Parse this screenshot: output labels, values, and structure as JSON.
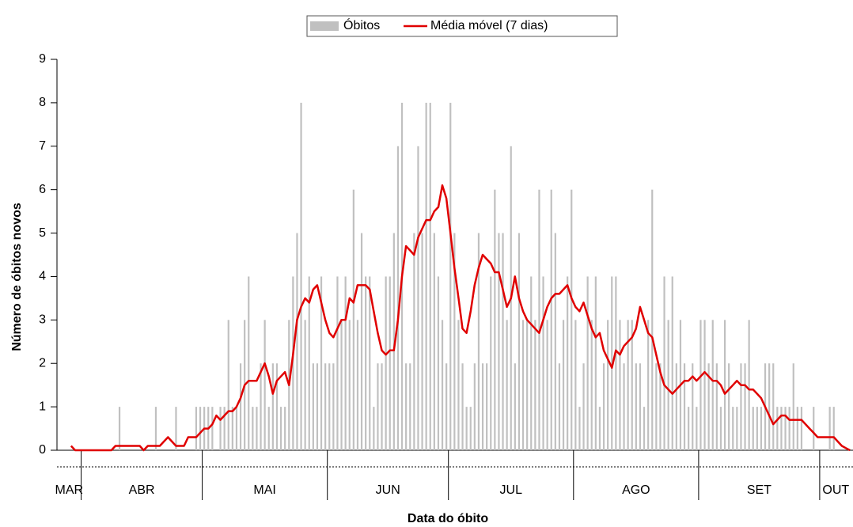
{
  "chart_data": {
    "type": "bar_line",
    "y_label": "Número de óbitos novos",
    "x_label": "Data do óbito",
    "months": [
      "MAR",
      "ABR",
      "MAI",
      "JUN",
      "JUL",
      "AGO",
      "SET",
      "OUT"
    ],
    "ylim": [
      0,
      9
    ],
    "yticks": [
      0,
      1,
      2,
      3,
      4,
      5,
      6,
      7,
      8,
      9
    ],
    "legend": "top",
    "series": [
      {
        "name": "Óbitos",
        "type": "bar",
        "color": "#c0c0c0",
        "values": [
          0,
          0,
          0,
          0,
          0,
          0,
          0,
          0,
          0,
          0,
          0,
          0,
          0,
          0,
          0,
          1,
          0,
          0,
          0,
          0,
          0,
          0,
          0,
          0,
          1,
          0,
          0,
          0,
          0,
          1,
          0,
          0,
          0,
          0,
          1,
          1,
          1,
          1,
          1,
          0,
          1,
          1,
          3,
          1,
          1,
          2,
          3,
          4,
          1,
          1,
          2,
          3,
          1,
          2,
          2,
          1,
          1,
          3,
          4,
          5,
          8,
          3,
          4,
          2,
          2,
          4,
          2,
          2,
          2,
          4,
          3,
          4,
          3,
          6,
          3,
          5,
          4,
          4,
          1,
          2,
          2,
          4,
          4,
          5,
          7,
          8,
          2,
          2,
          5,
          7,
          5,
          8,
          8,
          5,
          4,
          3,
          2,
          8,
          5,
          3,
          2,
          1,
          1,
          2,
          5,
          2,
          2,
          4,
          6,
          5,
          5,
          3,
          7,
          2,
          5,
          3,
          3,
          4,
          3,
          6,
          4,
          3,
          6,
          5,
          2,
          3,
          4,
          6,
          3,
          1,
          2,
          4,
          3,
          4,
          1,
          2,
          3,
          4,
          4,
          3,
          2,
          3,
          3,
          2,
          2,
          1,
          3,
          6,
          2,
          2,
          4,
          3,
          4,
          2,
          3,
          2,
          1,
          2,
          1,
          3,
          3,
          2,
          3,
          2,
          1,
          3,
          2,
          1,
          1,
          2,
          2,
          3,
          1,
          1,
          1,
          2,
          2,
          2,
          1,
          1,
          1,
          1,
          2,
          1,
          1,
          0,
          0,
          1,
          0,
          0,
          0,
          1,
          1,
          0,
          0,
          0,
          0
        ]
      },
      {
        "name": "Média móvel (7 dias)",
        "type": "line",
        "color": "#e00000",
        "values": [
          null,
          null,
          null,
          0.1,
          0,
          0,
          0,
          0,
          0,
          0,
          0,
          0,
          0,
          0,
          0.1,
          0.1,
          0.1,
          0.1,
          0.1,
          0.1,
          0.1,
          0,
          0.1,
          0.1,
          0.1,
          0.1,
          0.2,
          0.3,
          0.2,
          0.1,
          0.1,
          0.1,
          0.3,
          0.3,
          0.3,
          0.4,
          0.5,
          0.5,
          0.6,
          0.8,
          0.7,
          0.8,
          0.9,
          0.9,
          1.0,
          1.2,
          1.5,
          1.6,
          1.6,
          1.6,
          1.8,
          2.0,
          1.7,
          1.3,
          1.6,
          1.7,
          1.8,
          1.5,
          2.2,
          3.0,
          3.3,
          3.5,
          3.4,
          3.7,
          3.8,
          3.4,
          3.0,
          2.7,
          2.6,
          2.8,
          3.0,
          3.0,
          3.5,
          3.4,
          3.8,
          3.8,
          3.8,
          3.7,
          3.2,
          2.7,
          2.3,
          2.2,
          2.3,
          2.3,
          3.0,
          4.0,
          4.7,
          4.6,
          4.5,
          4.9,
          5.1,
          5.3,
          5.3,
          5.5,
          5.6,
          6.1,
          5.8,
          5.0,
          4.2,
          3.5,
          2.8,
          2.7,
          3.2,
          3.8,
          4.2,
          4.5,
          4.4,
          4.3,
          4.1,
          4.1,
          3.7,
          3.3,
          3.5,
          4.0,
          3.5,
          3.2,
          3.0,
          2.9,
          2.8,
          2.7,
          3.0,
          3.3,
          3.5,
          3.6,
          3.6,
          3.7,
          3.8,
          3.5,
          3.3,
          3.2,
          3.4,
          3.1,
          2.8,
          2.6,
          2.7,
          2.3,
          2.1,
          1.9,
          2.3,
          2.2,
          2.4,
          2.5,
          2.6,
          2.8,
          3.3,
          3.0,
          2.7,
          2.6,
          2.2,
          1.8,
          1.5,
          1.4,
          1.3,
          1.4,
          1.5,
          1.6,
          1.6,
          1.7,
          1.6,
          1.7,
          1.8,
          1.7,
          1.6,
          1.6,
          1.5,
          1.3,
          1.4,
          1.5,
          1.6,
          1.5,
          1.5,
          1.4,
          1.4,
          1.3,
          1.2,
          1.0,
          0.8,
          0.6,
          0.7,
          0.8,
          0.8,
          0.7,
          0.7,
          0.7,
          0.7,
          0.6,
          0.5,
          0.4,
          0.3,
          0.3,
          0.3,
          0.3,
          0.3,
          0.2,
          0.1,
          0.05,
          0
        ]
      }
    ]
  }
}
